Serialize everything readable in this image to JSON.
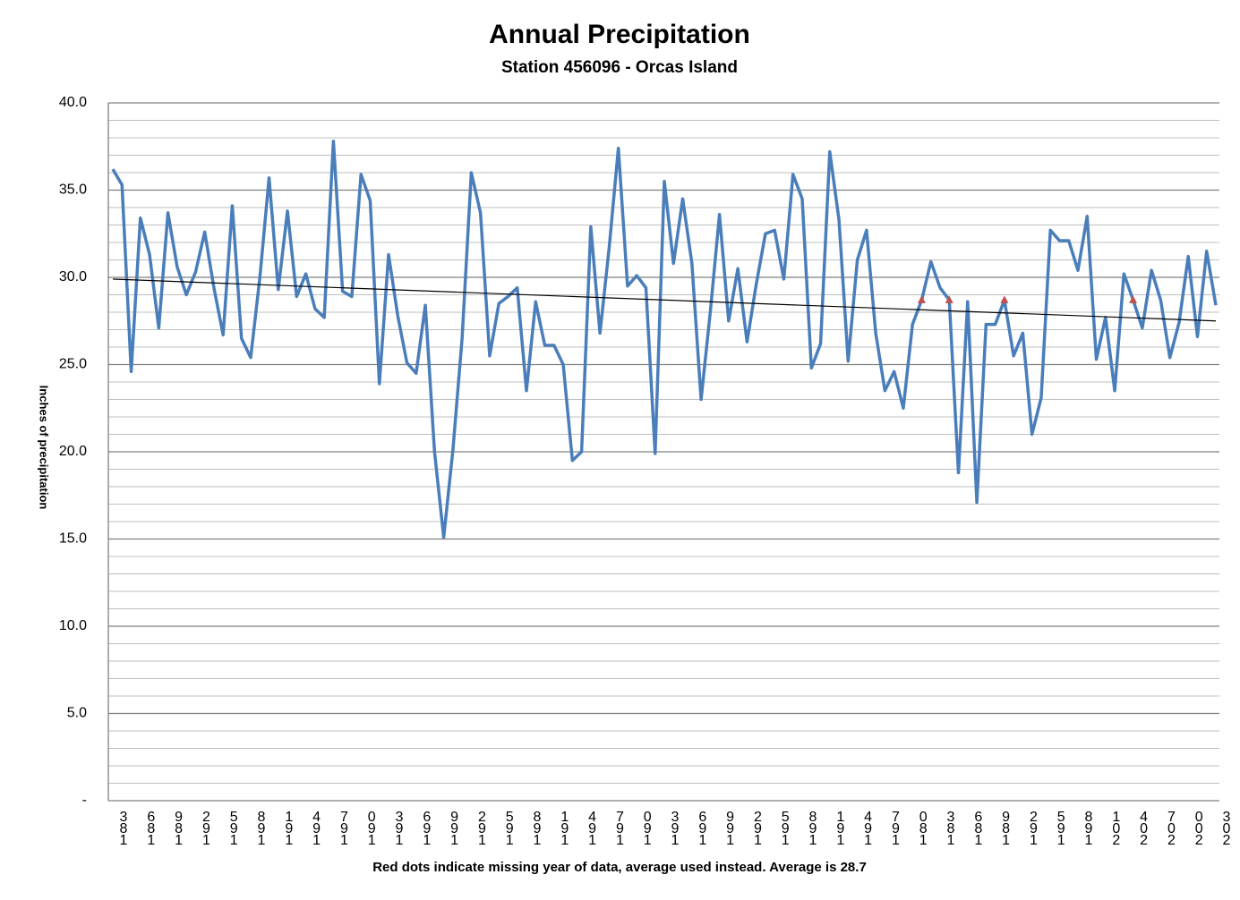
{
  "chart_data": {
    "type": "line",
    "title": "Annual Precipitation",
    "subtitle": "Station 456096 - Orcas Island",
    "ylabel": "Inches of precipitation",
    "xlabel": "Red dots indicate missing year of data, average used instead.  Average is 28.7",
    "categories": [
      "381",
      null,
      null,
      "681",
      null,
      null,
      "981",
      null,
      null,
      "291",
      null,
      null,
      "591",
      null,
      null,
      "891",
      null,
      null,
      "191",
      null,
      null,
      "491",
      null,
      null,
      "791",
      null,
      null,
      "091",
      null,
      null,
      "391",
      null,
      null,
      "691",
      null,
      null,
      "991",
      null,
      null,
      "291",
      null,
      null,
      "591",
      null,
      null,
      "891",
      null,
      null,
      "191",
      null,
      null,
      "491",
      null,
      null,
      "791",
      null,
      null,
      "091",
      null,
      null,
      "391",
      null,
      null,
      "691",
      null,
      null,
      "991",
      null,
      null,
      "291",
      null,
      null,
      "591",
      null,
      null,
      "891",
      null,
      null,
      "191",
      null,
      null,
      "491",
      null,
      null,
      "791",
      null,
      null,
      "081",
      null,
      null,
      "381",
      null,
      null,
      "681",
      null,
      null,
      "981",
      null,
      null,
      "291",
      null,
      null,
      "591",
      null,
      null,
      "891",
      null,
      null,
      "102",
      null,
      null,
      "402",
      null,
      null,
      "702",
      null,
      null,
      "002",
      null,
      null,
      "302"
    ],
    "series": [
      {
        "color": "#4a7ebb",
        "values": [
          36.2,
          35.3,
          24.6,
          33.4,
          31.3,
          27.1,
          33.7,
          30.6,
          29.0,
          30.3,
          32.6,
          29.4,
          26.7,
          34.1,
          26.5,
          25.4,
          30.0,
          35.7,
          29.3,
          33.8,
          28.9,
          30.2,
          28.2,
          27.7,
          37.8,
          29.2,
          28.9,
          35.9,
          34.4,
          23.9,
          31.3,
          27.8,
          25.1,
          24.5,
          28.4,
          20.0,
          15.1,
          20.1,
          26.5,
          36.0,
          33.7,
          25.5,
          28.5,
          28.9,
          29.4,
          23.5,
          28.6,
          26.1,
          26.1,
          25.0,
          19.5,
          20.0,
          32.9,
          26.8,
          31.7,
          37.4,
          29.5,
          30.1,
          29.4,
          19.9,
          35.5,
          30.8,
          34.5,
          30.8,
          23.0,
          28.0,
          33.6,
          27.5,
          30.5,
          26.3,
          29.6,
          32.5,
          32.7,
          29.9,
          35.9,
          34.5,
          24.8,
          26.2,
          37.2,
          33.3,
          25.2,
          31.0,
          32.7,
          26.8,
          23.5,
          24.6,
          22.5,
          27.3,
          28.7,
          30.9,
          29.4,
          28.7,
          18.8,
          28.6,
          17.1,
          27.3,
          27.3,
          28.7,
          25.5,
          26.8,
          21.0,
          23.1,
          32.7,
          32.1,
          32.1,
          30.4,
          33.5,
          25.3,
          27.7,
          23.5,
          30.2,
          28.7,
          27.1,
          30.4,
          28.7,
          25.4,
          27.4,
          31.2,
          26.6,
          31.5,
          28.4
        ]
      },
      {
        "color": "#c0504d",
        "marker": "triangle",
        "values": [
          null,
          null,
          null,
          null,
          null,
          null,
          null,
          null,
          null,
          null,
          null,
          null,
          null,
          null,
          null,
          null,
          null,
          null,
          null,
          null,
          null,
          null,
          null,
          null,
          null,
          null,
          null,
          null,
          null,
          null,
          null,
          null,
          null,
          null,
          null,
          null,
          null,
          null,
          null,
          null,
          null,
          null,
          null,
          null,
          null,
          null,
          null,
          null,
          null,
          null,
          null,
          null,
          null,
          null,
          null,
          null,
          null,
          null,
          null,
          null,
          null,
          null,
          null,
          null,
          null,
          null,
          null,
          null,
          null,
          null,
          null,
          null,
          null,
          null,
          null,
          null,
          null,
          null,
          null,
          null,
          null,
          null,
          null,
          null,
          null,
          null,
          null,
          null,
          28.7,
          null,
          null,
          28.7,
          null,
          null,
          null,
          null,
          null,
          28.7,
          null,
          null,
          null,
          null,
          null,
          null,
          null,
          null,
          null,
          null,
          null,
          null,
          null,
          28.7,
          null,
          null,
          null,
          null,
          null,
          null,
          null,
          null,
          null
        ]
      }
    ],
    "trendline": {
      "color": "#000000",
      "values": [
        29.9,
        27.5
      ]
    },
    "ylim": [
      0,
      40
    ],
    "yticks": [
      {
        "value": 0,
        "label": "-"
      },
      {
        "value": 5,
        "label": "5.0"
      },
      {
        "value": 10,
        "label": "10.0"
      },
      {
        "value": 15,
        "label": "15.0"
      },
      {
        "value": 20,
        "label": "20.0"
      },
      {
        "value": 25,
        "label": "25.0"
      },
      {
        "value": 30,
        "label": "30.0"
      },
      {
        "value": 35,
        "label": "35.0"
      },
      {
        "value": 40,
        "label": "40.0"
      }
    ],
    "minor_yticks": [
      1,
      2,
      3,
      4,
      6,
      7,
      8,
      9,
      11,
      12,
      13,
      14,
      16,
      17,
      18,
      19,
      21,
      22,
      23,
      24,
      26,
      27,
      28,
      29,
      31,
      32,
      33,
      34,
      36,
      37,
      38,
      39
    ],
    "grid": true
  }
}
